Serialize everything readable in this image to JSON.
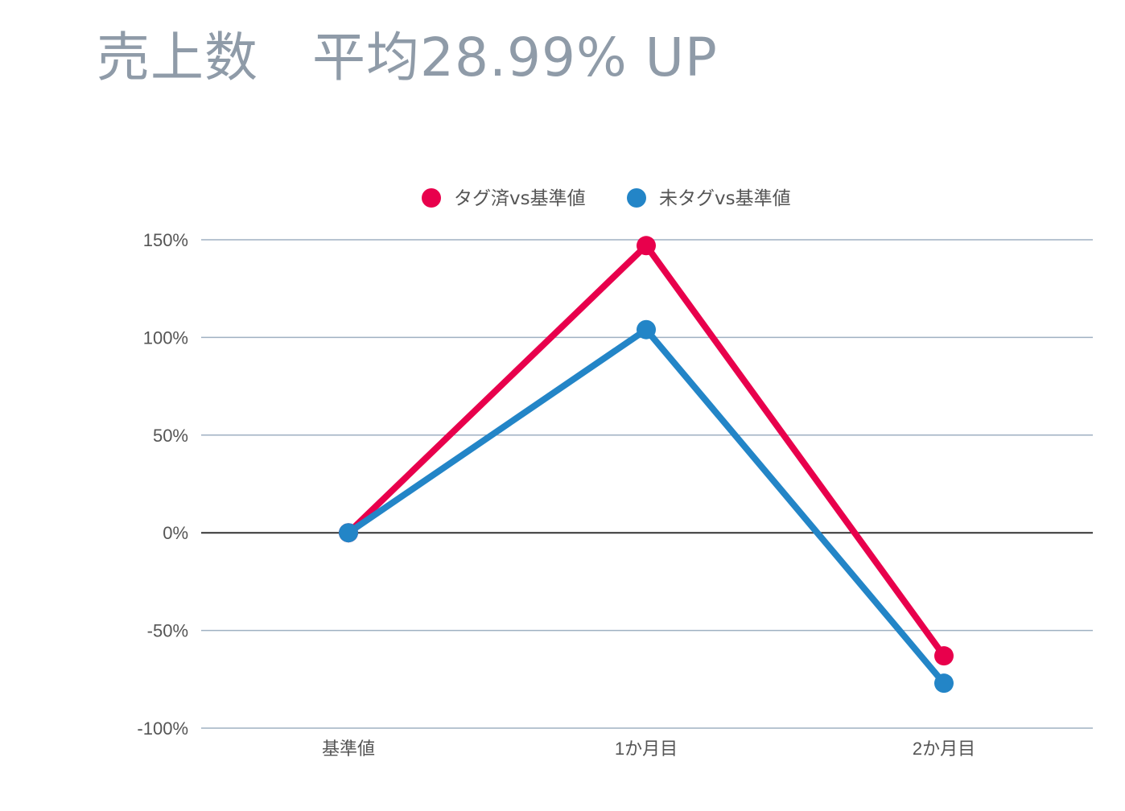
{
  "header": {
    "title": "売上数　平均28.99% UP"
  },
  "chart_data": {
    "type": "line",
    "title": "売上数　平均28.99% UP",
    "categories": [
      "基準値",
      "1か月目",
      "2か月目"
    ],
    "series": [
      {
        "name": "タグ済vs基準値",
        "color": "#e8004c",
        "values": [
          0,
          147,
          -63
        ]
      },
      {
        "name": "未タグvs基準値",
        "color": "#2385c7",
        "values": [
          0,
          104,
          -77
        ]
      }
    ],
    "ylim": [
      -100,
      150
    ],
    "yticks": [
      150,
      100,
      50,
      0,
      -50,
      -100
    ],
    "ytick_labels": [
      "150%",
      "100%",
      "50%",
      "0%",
      "-50%",
      "-100%"
    ],
    "xlabel": "",
    "ylabel": "",
    "grid": true,
    "legend_position": "top-center",
    "colors": {
      "grid": "#9fb0c2",
      "zero_line": "#333333"
    }
  }
}
